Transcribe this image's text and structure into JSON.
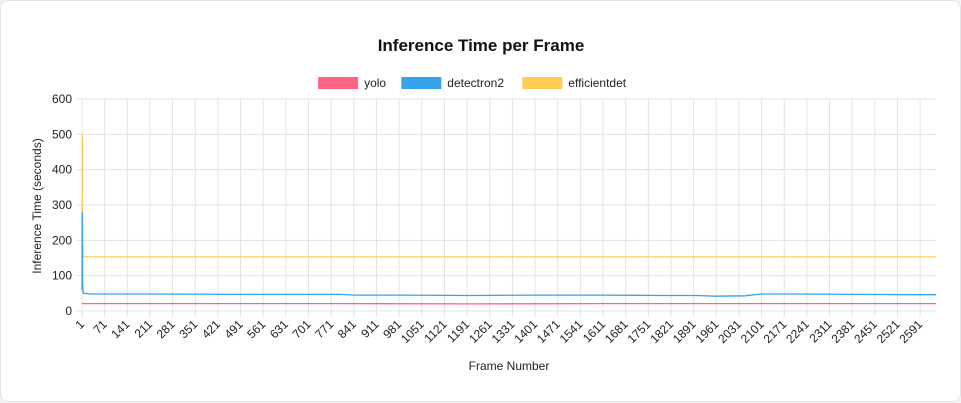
{
  "chart_data": {
    "type": "line",
    "title": "Inference Time per Frame",
    "xlabel": "Frame Number",
    "ylabel": "Inference Time (seconds)",
    "ylim": [
      0,
      600
    ],
    "yticks": [
      0,
      100,
      200,
      300,
      400,
      500,
      600
    ],
    "x_tick_labels": [
      "1",
      "71",
      "141",
      "211",
      "281",
      "351",
      "421",
      "491",
      "561",
      "631",
      "701",
      "771",
      "841",
      "911",
      "981",
      "1051",
      "1121",
      "1191",
      "1261",
      "1331",
      "1401",
      "1471",
      "1541",
      "1611",
      "1681",
      "1751",
      "1821",
      "1891",
      "1961",
      "2031",
      "2101",
      "2171",
      "2241",
      "2311",
      "2381",
      "2451",
      "2521",
      "2591"
    ],
    "xlim": [
      1,
      2640
    ],
    "grid": true,
    "legend_position": "top",
    "series": [
      {
        "name": "yolo",
        "color": "#ff6384",
        "x": [
          1,
          2,
          3,
          100,
          400,
          800,
          1200,
          1600,
          2000,
          2400,
          2640
        ],
        "values": [
          22,
          22,
          21,
          21,
          21,
          21,
          20,
          21,
          21,
          21,
          21
        ]
      },
      {
        "name": "detectron2",
        "color": "#36a2eb",
        "x": [
          1,
          2,
          3,
          4,
          5,
          30,
          200,
          500,
          800,
          840,
          1000,
          1200,
          1400,
          1600,
          1800,
          1900,
          1960,
          2050,
          2100,
          2200,
          2400,
          2600,
          2640
        ],
        "values": [
          60,
          280,
          80,
          60,
          50,
          48,
          48,
          47,
          47,
          45,
          45,
          44,
          45,
          45,
          44,
          44,
          42,
          43,
          48,
          48,
          47,
          46,
          46
        ]
      },
      {
        "name": "efficientdet",
        "color": "#ffcd56",
        "x": [
          1,
          2,
          3,
          4,
          10,
          400,
          800,
          1200,
          1600,
          2000,
          2400,
          2640
        ],
        "values": [
          160,
          500,
          200,
          153,
          153,
          153,
          153,
          153,
          153,
          153,
          153,
          153
        ]
      }
    ]
  }
}
